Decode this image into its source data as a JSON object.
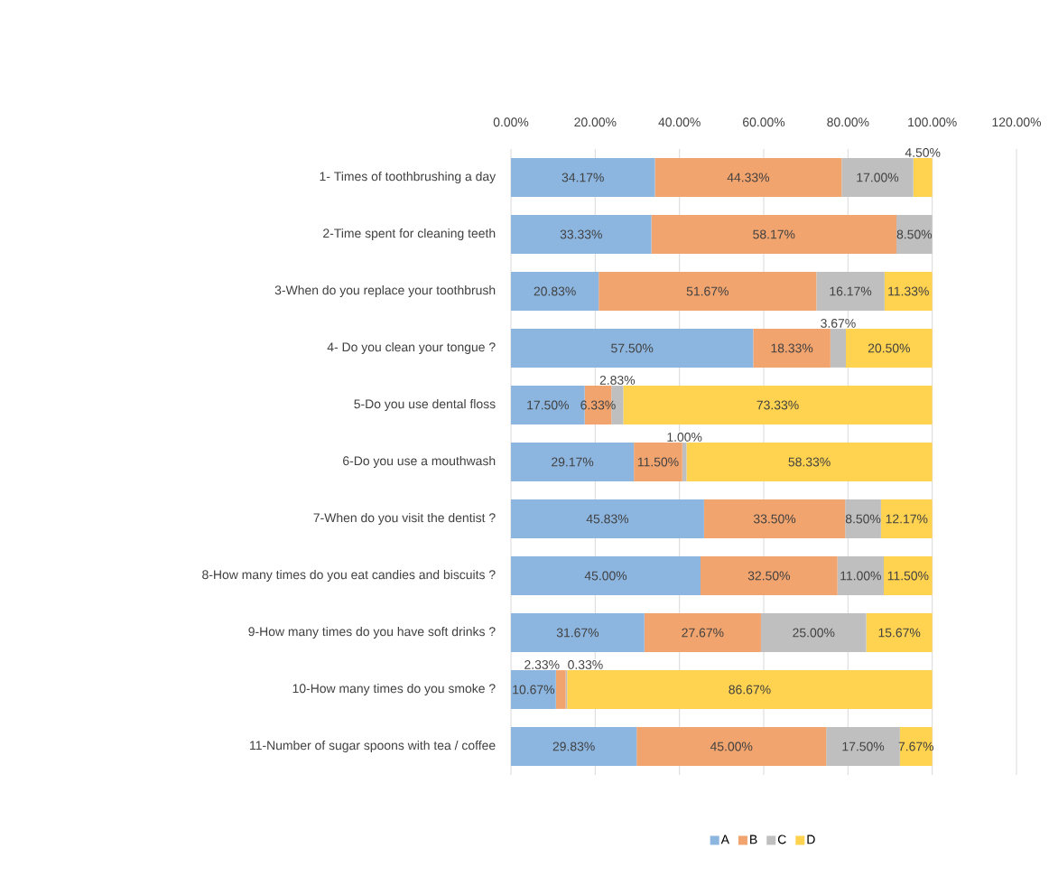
{
  "chart_data": {
    "type": "bar",
    "orientation": "horizontal",
    "stacked": true,
    "grid": "x",
    "legend": "bottom",
    "categories": [
      "1- Times of toothbrushing a day",
      "2-Time spent for cleaning teeth",
      "3-When do you replace your toothbrush",
      "4- Do you clean your tongue ?",
      "5-Do you use dental floss",
      "6-Do you use a mouthwash",
      "7-When do you visit the dentist ?",
      "8-How many times do you eat candies and biscuits ?",
      "9-How many times do you have soft drinks ?",
      "10-How many times do you smoke ?",
      "11-Number of sugar spoons with tea / coffee"
    ],
    "xlim": [
      0,
      120
    ],
    "xticks": [
      {
        "value": 0,
        "label": "0.00%"
      },
      {
        "value": 20,
        "label": "20.00%"
      },
      {
        "value": 40,
        "label": "40.00%"
      },
      {
        "value": 60,
        "label": "60.00%"
      },
      {
        "value": 80,
        "label": "80.00%"
      },
      {
        "value": 100,
        "label": "100.00%"
      },
      {
        "value": 120,
        "label": "120.00%"
      }
    ],
    "series": [
      {
        "name": "A",
        "color": "#8cb6e0",
        "values": [
          34.17,
          33.33,
          20.83,
          57.5,
          17.5,
          29.17,
          45.83,
          45.0,
          31.67,
          10.67,
          29.83
        ],
        "value_labels": [
          "34.17%",
          "33.33%",
          "20.83%",
          "57.50%",
          "17.50%",
          "29.17%",
          "45.83%",
          "45.00%",
          "31.67%",
          "10.67%",
          "29.83%"
        ]
      },
      {
        "name": "B",
        "color": "#f2a46f",
        "values": [
          44.33,
          58.17,
          51.67,
          18.33,
          6.33,
          11.5,
          33.5,
          32.5,
          27.67,
          2.33,
          45.0
        ],
        "value_labels": [
          "44.33%",
          "58.17%",
          "51.67%",
          "18.33%",
          "6.33%",
          "11.50%",
          "33.50%",
          "32.50%",
          "27.67%",
          "2.33%",
          "45.00%"
        ]
      },
      {
        "name": "C",
        "color": "#bfbfbf",
        "values": [
          17.0,
          8.5,
          16.17,
          3.67,
          2.83,
          1.0,
          8.5,
          11.0,
          25.0,
          0.33,
          17.5
        ],
        "value_labels": [
          "17.00%",
          "8.50%",
          "16.17%",
          "3.67%",
          "2.83%",
          "1.00%",
          "8.50%",
          "11.00%",
          "25.00%",
          "0.33%",
          "17.50%"
        ]
      },
      {
        "name": "D",
        "color": "#ffd24f",
        "values": [
          4.5,
          null,
          11.33,
          20.5,
          73.33,
          58.33,
          12.17,
          11.5,
          15.67,
          86.67,
          7.67
        ],
        "value_labels": [
          "4.50%",
          null,
          "11.33%",
          "20.50%",
          "73.33%",
          "58.33%",
          "12.17%",
          "11.50%",
          "15.67%",
          "86.67%",
          "7.67%"
        ]
      }
    ]
  }
}
